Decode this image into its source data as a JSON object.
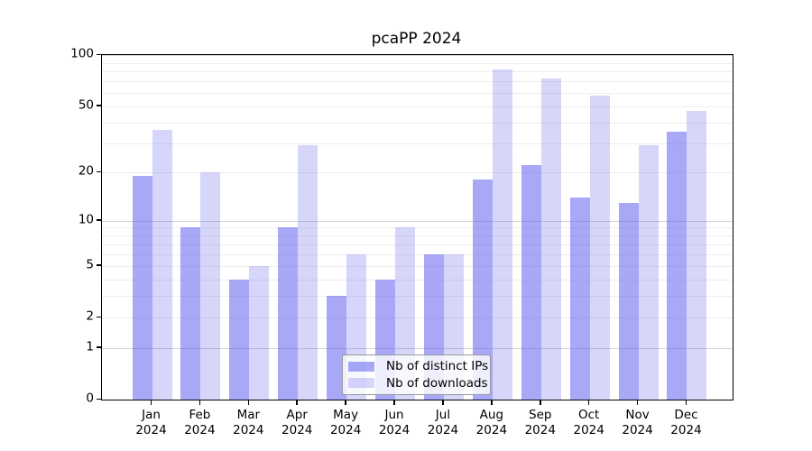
{
  "title": "pcaPP 2024",
  "colors": {
    "bar_base": "#6969f0",
    "series_dark": "rgba(105,105,240,0.58)",
    "series_light": "rgba(105,105,240,0.27)",
    "grid_minor": "#ededed",
    "grid_major": "#d2d2d2",
    "axis": "#000000",
    "background": "#ffffff"
  },
  "chart_data": {
    "type": "bar",
    "title": "pcaPP 2024",
    "x_categories": [
      "Jan",
      "Feb",
      "Mar",
      "Apr",
      "May",
      "Jun",
      "Jul",
      "Aug",
      "Sep",
      "Oct",
      "Nov",
      "Dec"
    ],
    "x_sublabel": "2024",
    "series": [
      {
        "name": "Nb of distinct IPs",
        "color": "rgba(105,105,240,0.58)",
        "values": [
          19,
          9,
          4,
          9,
          3,
          4,
          6,
          18,
          22,
          14,
          13,
          35
        ]
      },
      {
        "name": "Nb of downloads",
        "color": "rgba(105,105,240,0.27)",
        "values": [
          36,
          20,
          5,
          29,
          6,
          9,
          6,
          82,
          73,
          58,
          29,
          47
        ]
      }
    ],
    "y_scale": "log1p",
    "y_ticks": [
      0,
      1,
      2,
      5,
      10,
      20,
      50,
      100
    ],
    "y_minor_gridlines": [
      2,
      3,
      4,
      5,
      6,
      7,
      8,
      9,
      20,
      30,
      40,
      50,
      60,
      70,
      80,
      90
    ],
    "y_major_gridlines": [
      1,
      10,
      100
    ],
    "ylim": [
      0,
      100
    ],
    "grid": "horizontal",
    "legend": {
      "position": "inside-bottom-center",
      "entries": [
        "Nb of distinct IPs",
        "Nb of downloads"
      ]
    }
  }
}
